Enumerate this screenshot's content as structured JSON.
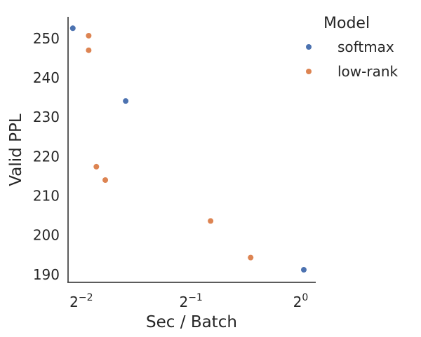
{
  "chart_data": {
    "type": "scatter",
    "xlabel": "Sec / Batch",
    "ylabel": "Valid PPL",
    "x_scale": "log2",
    "x_range": [
      0.23,
      1.1
    ],
    "ylim": [
      188,
      255.5
    ],
    "x_ticks": [
      {
        "value": 0.25,
        "base": "2",
        "exp": "−2"
      },
      {
        "value": 0.5,
        "base": "2",
        "exp": "−1"
      },
      {
        "value": 1,
        "base": "2",
        "exp": "0"
      }
    ],
    "y_ticks": [
      190,
      200,
      210,
      220,
      230,
      240,
      250
    ],
    "grid": false,
    "legend": {
      "title": "Model",
      "position": "top-right outside"
    },
    "series": [
      {
        "name": "softmax",
        "color": "#4c72b0",
        "points": [
          {
            "x": 0.237,
            "y": 252.6
          },
          {
            "x": 0.331,
            "y": 234.1
          },
          {
            "x": 1.02,
            "y": 191.2
          }
        ]
      },
      {
        "name": "low-rank",
        "color": "#dd8452",
        "points": [
          {
            "x": 0.262,
            "y": 250.7
          },
          {
            "x": 0.262,
            "y": 247.0
          },
          {
            "x": 0.275,
            "y": 217.4
          },
          {
            "x": 0.291,
            "y": 214.0
          },
          {
            "x": 0.566,
            "y": 203.6
          },
          {
            "x": 0.729,
            "y": 194.3
          }
        ]
      }
    ]
  }
}
